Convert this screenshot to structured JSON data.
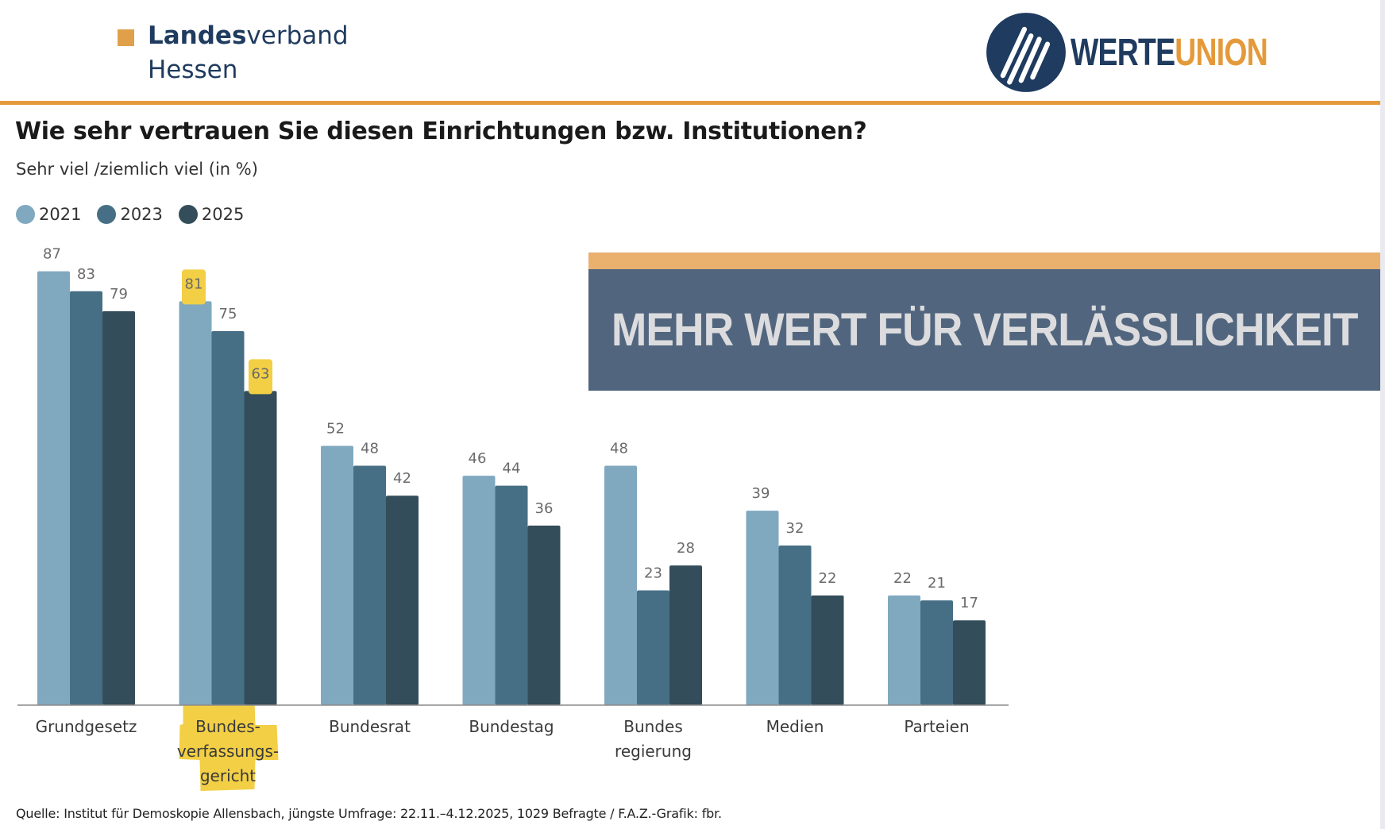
{
  "header": {
    "org_bold": "Landes",
    "org_rest": "verband",
    "org_line2": "Hessen",
    "logo_part1": "WERTE",
    "logo_part2": "UNION"
  },
  "banner": {
    "text": "MEHR WERT FÜR VERLÄSSLICHKEIT"
  },
  "colors": {
    "accent": "#e49a3a",
    "navy": "#1f3b5f",
    "highlight": "#f2cf45"
  },
  "chart_data": {
    "type": "bar",
    "title": "Wie sehr vertrauen Sie diesen Einrichtungen bzw. Institutionen?",
    "subtitle": "Sehr viel /ziemlich viel (in %)",
    "xlabel": "",
    "ylabel": "",
    "ylim": [
      0,
      100
    ],
    "grid": false,
    "legend_position": "top-left",
    "categories": [
      [
        "Grundgesetz"
      ],
      [
        "Bundes-",
        "verfassungs-",
        "gericht"
      ],
      [
        "Bundesrat"
      ],
      [
        "Bundestag"
      ],
      [
        "Bundes",
        "regierung"
      ],
      [
        "Medien"
      ],
      [
        "Parteien"
      ]
    ],
    "series": [
      {
        "name": "2021",
        "color": "#80a9c0",
        "values": [
          87,
          81,
          52,
          46,
          48,
          39,
          22
        ]
      },
      {
        "name": "2023",
        "color": "#466f85",
        "values": [
          83,
          75,
          48,
          44,
          23,
          32,
          21
        ]
      },
      {
        "name": "2025",
        "color": "#344d5a",
        "values": [
          79,
          63,
          42,
          36,
          28,
          22,
          17
        ]
      }
    ],
    "highlighted": {
      "category_index": 1,
      "values": [
        [
          0,
          1
        ],
        [
          2,
          1
        ]
      ]
    },
    "source": "Quelle: Institut für Demoskopie Allensbach, jüngste Umfrage: 22.11.–4.12.2025, 1029 Befragte / F.A.Z.-Grafik: fbr."
  }
}
